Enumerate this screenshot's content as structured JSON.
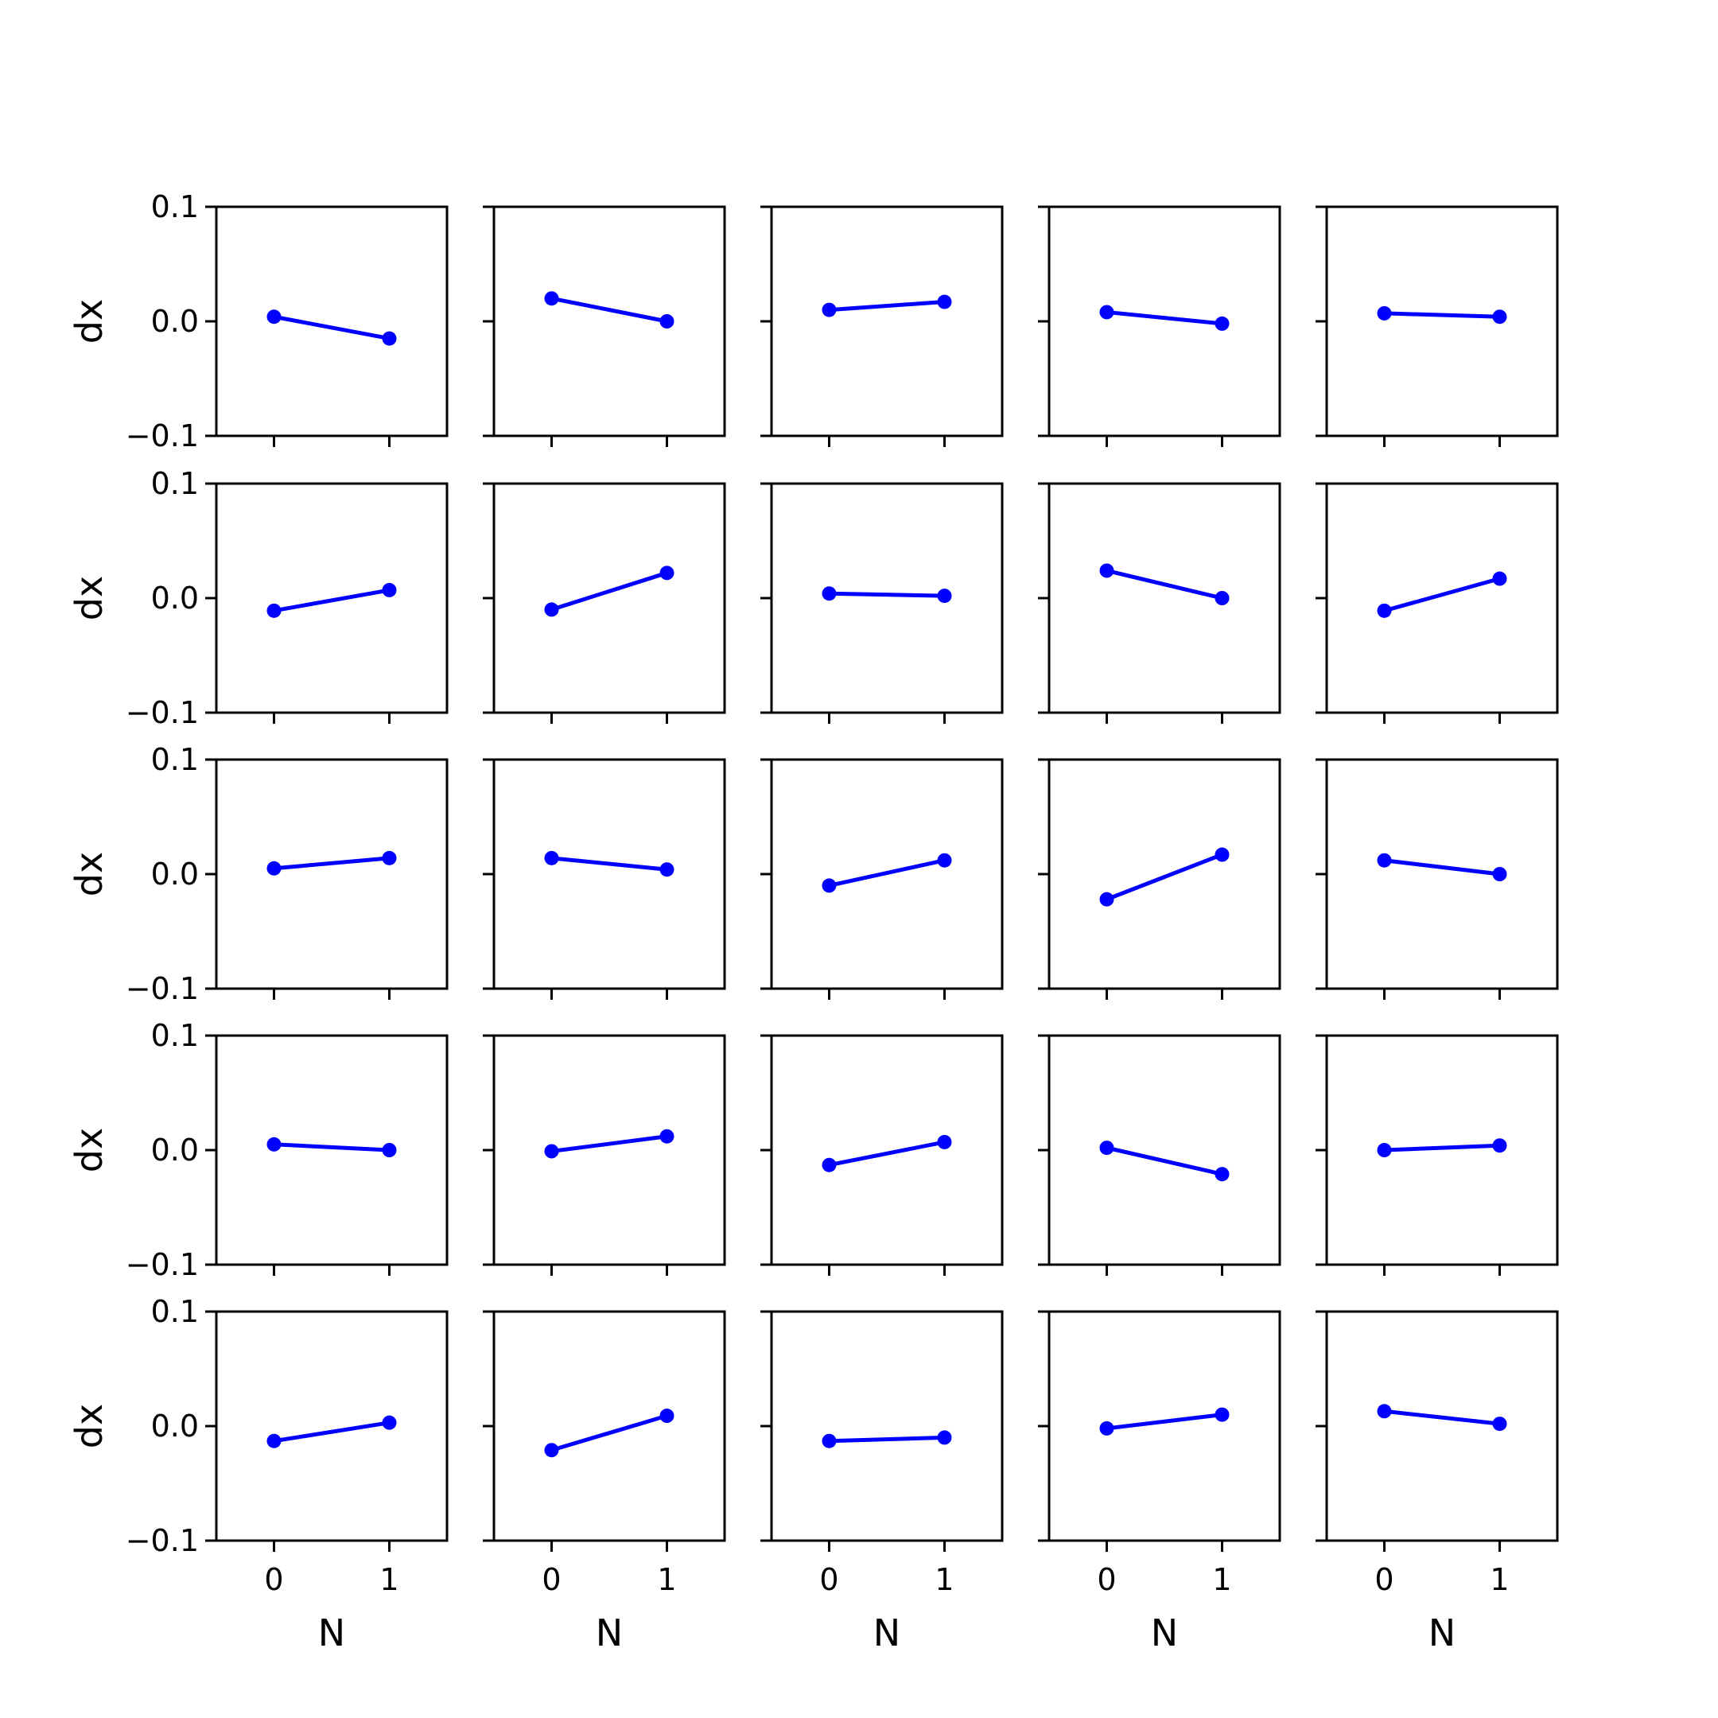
{
  "chart_data": {
    "type": "line",
    "layout": {
      "rows": 5,
      "cols": 5
    },
    "color": "#0000ff",
    "x": [
      0,
      1
    ],
    "xlim": [
      -0.5,
      1.5
    ],
    "ylim": [
      -0.1,
      0.1
    ],
    "xticks": [
      0,
      1
    ],
    "yticks": [
      -0.1,
      0.0,
      0.1
    ],
    "xtick_labels": [
      "0",
      "1"
    ],
    "ytick_labels": [
      "−0.1",
      "0.0",
      "0.1"
    ],
    "xlabel": "N",
    "ylabel": "dx",
    "grid": false,
    "panels": [
      {
        "row": 0,
        "col": 0,
        "y": [
          0.004,
          -0.015
        ]
      },
      {
        "row": 0,
        "col": 1,
        "y": [
          0.02,
          0.0
        ]
      },
      {
        "row": 0,
        "col": 2,
        "y": [
          0.01,
          0.017
        ]
      },
      {
        "row": 0,
        "col": 3,
        "y": [
          0.008,
          -0.002
        ]
      },
      {
        "row": 0,
        "col": 4,
        "y": [
          0.007,
          0.004
        ]
      },
      {
        "row": 1,
        "col": 0,
        "y": [
          -0.011,
          0.007
        ]
      },
      {
        "row": 1,
        "col": 1,
        "y": [
          -0.01,
          0.022
        ]
      },
      {
        "row": 1,
        "col": 2,
        "y": [
          0.004,
          0.002
        ]
      },
      {
        "row": 1,
        "col": 3,
        "y": [
          0.024,
          0.0
        ]
      },
      {
        "row": 1,
        "col": 4,
        "y": [
          -0.011,
          0.017
        ]
      },
      {
        "row": 2,
        "col": 0,
        "y": [
          0.005,
          0.014
        ]
      },
      {
        "row": 2,
        "col": 1,
        "y": [
          0.014,
          0.004
        ]
      },
      {
        "row": 2,
        "col": 2,
        "y": [
          -0.01,
          0.012
        ]
      },
      {
        "row": 2,
        "col": 3,
        "y": [
          -0.022,
          0.017
        ]
      },
      {
        "row": 2,
        "col": 4,
        "y": [
          0.012,
          0.0
        ]
      },
      {
        "row": 3,
        "col": 0,
        "y": [
          0.005,
          0.0
        ]
      },
      {
        "row": 3,
        "col": 1,
        "y": [
          -0.001,
          0.012
        ]
      },
      {
        "row": 3,
        "col": 2,
        "y": [
          -0.013,
          0.007
        ]
      },
      {
        "row": 3,
        "col": 3,
        "y": [
          0.002,
          -0.021
        ]
      },
      {
        "row": 3,
        "col": 4,
        "y": [
          0.0,
          0.004
        ]
      },
      {
        "row": 4,
        "col": 0,
        "y": [
          -0.013,
          0.003
        ]
      },
      {
        "row": 4,
        "col": 1,
        "y": [
          -0.021,
          0.009
        ]
      },
      {
        "row": 4,
        "col": 2,
        "y": [
          -0.013,
          -0.01
        ]
      },
      {
        "row": 4,
        "col": 3,
        "y": [
          -0.002,
          0.01
        ]
      },
      {
        "row": 4,
        "col": 4,
        "y": [
          0.013,
          0.002
        ]
      }
    ]
  }
}
